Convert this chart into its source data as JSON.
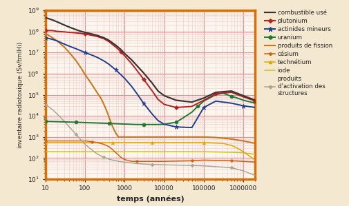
{
  "background_color": "#f5e8d0",
  "plot_bg_color": "#fdf6ee",
  "border_color": "#d4700a",
  "grid_color_major": "#e09090",
  "grid_color_minor": "#f0c8c8",
  "xlabel": "temps (années)",
  "ylabel": "inventaire radiotoxique (Sv/tmIHi)",
  "xlim": [
    10,
    2000000
  ],
  "ylim": [
    10,
    1000000000.0
  ],
  "series": {
    "combustible_use": {
      "label": "combustible usé",
      "color": "#3a3535",
      "linewidth": 1.6,
      "marker": null,
      "x": [
        10,
        15,
        20,
        30,
        40,
        60,
        80,
        100,
        150,
        200,
        300,
        400,
        600,
        800,
        1000,
        1500,
        2000,
        3000,
        5000,
        7000,
        10000,
        20000,
        50000,
        100000,
        200000,
        500000,
        1000000,
        2000000
      ],
      "y": [
        450000000.0,
        350000000.0,
        280000000.0,
        200000000.0,
        160000000.0,
        120000000.0,
        100000000.0,
        90000000.0,
        75000000.0,
        65000000.0,
        50000000.0,
        38000000.0,
        22000000.0,
        14000000.0,
        9000000.0,
        4500000.0,
        2500000.0,
        1100000.0,
        350000.0,
        150000.0,
        90000.0,
        55000.0,
        45000.0,
        70000.0,
        130000.0,
        150000.0,
        90000.0,
        55000.0
      ]
    },
    "plutonium": {
      "label": "plutonium",
      "color": "#b52020",
      "linewidth": 1.4,
      "marker": "D",
      "markersize": 3,
      "markevery": 0.15,
      "x": [
        10,
        15,
        20,
        30,
        40,
        60,
        80,
        100,
        150,
        200,
        300,
        400,
        600,
        800,
        1000,
        1500,
        2000,
        3000,
        5000,
        7000,
        10000,
        20000,
        50000,
        100000,
        200000,
        500000,
        1000000,
        2000000
      ],
      "y": [
        110000000.0,
        110000000.0,
        100000000.0,
        95000000.0,
        90000000.0,
        85000000.0,
        80000000.0,
        75000000.0,
        65000000.0,
        58000000.0,
        45000000.0,
        33000000.0,
        18000000.0,
        11000000.0,
        7000000.0,
        3000000.0,
        1500000.0,
        550000.0,
        150000.0,
        60000.0,
        35000.0,
        25000.0,
        28000.0,
        55000.0,
        110000.0,
        130000.0,
        80000.0,
        50000.0
      ]
    },
    "actinides_mineurs": {
      "label": "actinides mineurs",
      "color": "#1e3d8f",
      "linewidth": 1.4,
      "marker": "*",
      "markersize": 5,
      "markevery": 0.15,
      "x": [
        10,
        15,
        20,
        30,
        40,
        60,
        80,
        100,
        150,
        200,
        300,
        400,
        600,
        800,
        1000,
        1500,
        2000,
        3000,
        5000,
        7000,
        10000,
        20000,
        50000,
        100000,
        200000,
        500000,
        1000000,
        2000000
      ],
      "y": [
        50000000.0,
        42000000.0,
        35000000.0,
        25000000.0,
        20000000.0,
        15000000.0,
        12000000.0,
        10000000.0,
        7500000.0,
        6000000.0,
        4000000.0,
        2800000.0,
        1500000.0,
        900000.0,
        600000.0,
        250000.0,
        120000.0,
        40000.0,
        12000.0,
        6000.0,
        4000.0,
        3000.0,
        2800.0,
        25000.0,
        50000.0,
        40000.0,
        30000.0,
        25000.0
      ]
    },
    "uranium": {
      "label": "uranium",
      "color": "#1a7a30",
      "linewidth": 1.4,
      "marker": "o",
      "markersize": 3.5,
      "markevery": 0.12,
      "x": [
        10,
        15,
        20,
        30,
        40,
        60,
        80,
        100,
        200,
        400,
        700,
        1000,
        2000,
        3000,
        5000,
        7000,
        10000,
        20000,
        30000,
        50000,
        70000,
        100000,
        200000,
        300000,
        500000,
        700000,
        1000000,
        2000000
      ],
      "y": [
        5500,
        5400,
        5300,
        5200,
        5100,
        5000,
        4900,
        4800,
        4600,
        4400,
        4200,
        4100,
        3900,
        3900,
        3900,
        3900,
        4000,
        5000,
        8000,
        15000.0,
        28000.0,
        50000.0,
        100000.0,
        120000.0,
        85000.0,
        70000.0,
        55000.0,
        40000.0
      ]
    },
    "produits_de_fission": {
      "label": "produits de fission",
      "color": "#c87820",
      "linewidth": 1.5,
      "marker": null,
      "x": [
        10,
        15,
        20,
        30,
        40,
        60,
        80,
        100,
        130,
        160,
        200,
        250,
        300,
        350,
        400,
        500,
        600,
        700,
        800,
        1000,
        1500,
        2000,
        3000,
        5000,
        7000,
        10000,
        20000,
        50000,
        100000,
        200000,
        500000,
        1000000,
        2000000
      ],
      "y": [
        80000000.0,
        50000000.0,
        35000000.0,
        18000000.0,
        10000000.0,
        4000000.0,
        1800000.0,
        900000.0,
        450000.0,
        250000.0,
        130000.0,
        70000.0,
        35000.0,
        18000.0,
        9000.0,
        3000.0,
        1500.0,
        1000.0,
        1000.0,
        1000.0,
        1000.0,
        1000.0,
        1000.0,
        1000.0,
        1000.0,
        1000.0,
        1000.0,
        1000.0,
        1000.0,
        950.0,
        800.0,
        650.0,
        500.0
      ]
    },
    "cesium": {
      "label": "césium",
      "color": "#d06010",
      "linewidth": 1.1,
      "marker": "o",
      "markersize": 2.5,
      "markevery": 0.18,
      "x": [
        10,
        20,
        40,
        80,
        100,
        150,
        200,
        300,
        400,
        500,
        600,
        700,
        800,
        1000,
        1500,
        2000,
        5000,
        10000,
        50000,
        100000,
        500000,
        1000000,
        2000000
      ],
      "y": [
        650.0,
        650.0,
        650.0,
        650.0,
        650.0,
        600.0,
        550.0,
        450.0,
        350.0,
        250.0,
        180.0,
        140.0,
        110.0,
        85.0,
        70.0,
        70.0,
        70.0,
        70.0,
        75.0,
        80.0,
        75.0,
        70.0,
        65.0
      ]
    },
    "technetium": {
      "label": "technétium",
      "color": "#e0a800",
      "linewidth": 1.1,
      "marker": "^",
      "markersize": 3,
      "markevery": 0.2,
      "x": [
        10,
        100,
        500,
        1000,
        2000,
        5000,
        10000,
        50000,
        100000,
        300000,
        500000,
        700000,
        1000000,
        2000000
      ],
      "y": [
        550.0,
        550.0,
        550.0,
        550.0,
        550.0,
        550.0,
        550.0,
        550.0,
        550.0,
        500.0,
        400.0,
        300.0,
        200.0,
        80.0
      ]
    },
    "iode": {
      "label": "iode",
      "color": "#c8c020",
      "linewidth": 1.1,
      "marker": null,
      "x": [
        10,
        100,
        1000,
        10000,
        100000,
        500000,
        1000000,
        2000000
      ],
      "y": [
        200.0,
        200.0,
        200.0,
        200.0,
        200.0,
        190.0,
        180.0,
        150.0
      ]
    },
    "produits_activation": {
      "label": "produits\nd'activation des\nstructures",
      "color": "#a8a890",
      "linewidth": 1.1,
      "marker": "D",
      "markersize": 2.5,
      "markevery": 0.15,
      "x": [
        10,
        15,
        20,
        30,
        40,
        60,
        80,
        100,
        130,
        160,
        200,
        250,
        300,
        400,
        500,
        700,
        1000,
        2000,
        5000,
        10000,
        50000,
        100000,
        500000,
        1000000,
        2000000
      ],
      "y": [
        35000.0,
        20000.0,
        12000.0,
        5500.0,
        3000.0,
        1300.0,
        700.0,
        450.0,
        300.0,
        220.0,
        160.0,
        130.0,
        110.0,
        90.0,
        80.0,
        70.0,
        65.0,
        55.0,
        50.0,
        48.0,
        45.0,
        43.0,
        35.0,
        25.0,
        15.0
      ]
    }
  },
  "legend_labels": {
    "combustible_use": "combustible usé",
    "plutonium": "plutonium",
    "actinides_mineurs": "actinides mineurs",
    "uranium": "uranium",
    "produits_de_fission": "produits de fission",
    "cesium": "césium",
    "technetium": "technétium",
    "iode": "iode",
    "produits_activation": "produits\nd'activation des\nstructures"
  }
}
